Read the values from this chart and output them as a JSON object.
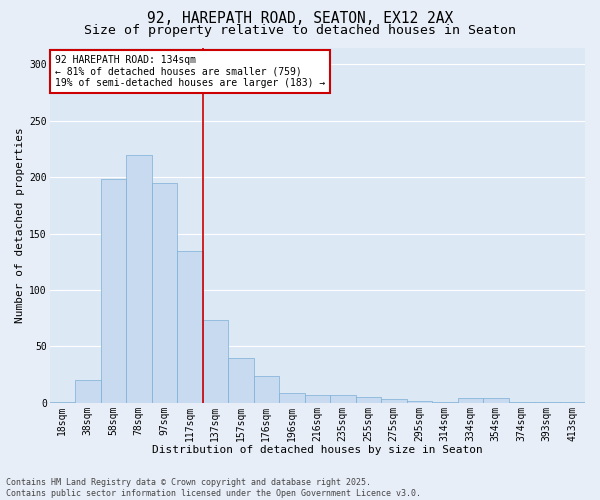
{
  "title1": "92, HAREPATH ROAD, SEATON, EX12 2AX",
  "title2": "Size of property relative to detached houses in Seaton",
  "xlabel": "Distribution of detached houses by size in Seaton",
  "ylabel": "Number of detached properties",
  "categories": [
    "18sqm",
    "38sqm",
    "58sqm",
    "78sqm",
    "97sqm",
    "117sqm",
    "137sqm",
    "157sqm",
    "176sqm",
    "196sqm",
    "216sqm",
    "235sqm",
    "255sqm",
    "275sqm",
    "295sqm",
    "314sqm",
    "334sqm",
    "354sqm",
    "374sqm",
    "393sqm",
    "413sqm"
  ],
  "values": [
    1,
    20,
    198,
    220,
    195,
    135,
    73,
    40,
    24,
    9,
    7,
    7,
    5,
    3,
    2,
    1,
    4,
    4,
    1,
    1,
    1
  ],
  "bar_color": "#c8daf0",
  "bar_edge_color": "#7aaed6",
  "vline_color": "#cc0000",
  "vline_x": 5.5,
  "annotation_text": "92 HAREPATH ROAD: 134sqm\n← 81% of detached houses are smaller (759)\n19% of semi-detached houses are larger (183) →",
  "annotation_box_facecolor": "#ffffff",
  "annotation_box_edgecolor": "#cc0000",
  "ylim": [
    0,
    315
  ],
  "yticks": [
    0,
    50,
    100,
    150,
    200,
    250,
    300
  ],
  "plot_bgcolor": "#dde8f5",
  "fig_bgcolor": "#e8eef8",
  "grid_color": "#ffffff",
  "footnote": "Contains HM Land Registry data © Crown copyright and database right 2025.\nContains public sector information licensed under the Open Government Licence v3.0.",
  "title_fontsize": 10.5,
  "subtitle_fontsize": 9.5,
  "axis_label_fontsize": 8,
  "tick_fontsize": 7,
  "annotation_fontsize": 7,
  "footnote_fontsize": 6
}
